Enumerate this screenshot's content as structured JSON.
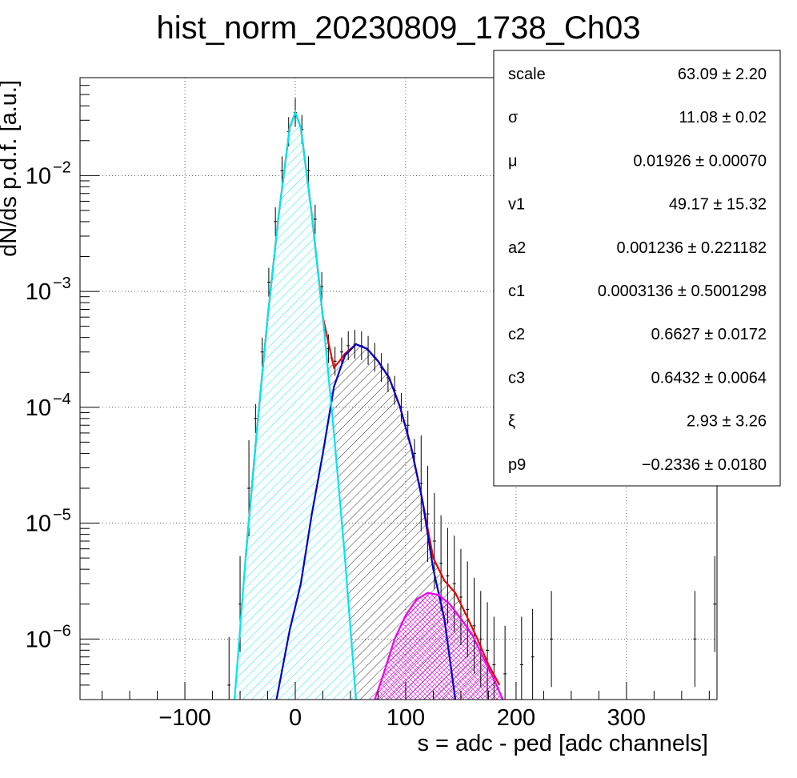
{
  "chart_data": {
    "type": "line",
    "title": "hist_norm_20230809_1738_Ch03",
    "xlabel": "s = adc - ped [adc channels]",
    "ylabel": "dN/ds p.d.f. [a.u.]",
    "xlim": [
      -195,
      382
    ],
    "ylim": [
      3e-07,
      0.07
    ],
    "yscale": "log",
    "grid": true,
    "x_ticks": [
      {
        "value": -100,
        "label": "−100"
      },
      {
        "value": 0,
        "label": "0"
      },
      {
        "value": 100,
        "label": "100"
      },
      {
        "value": 200,
        "label": "200"
      },
      {
        "value": 300,
        "label": "300"
      }
    ],
    "y_ticks": [
      {
        "value": 0.01,
        "label": "10",
        "exp": "−2"
      },
      {
        "value": 0.001,
        "label": "10",
        "exp": "−3"
      },
      {
        "value": 0.0001,
        "label": "10",
        "exp": "−4"
      },
      {
        "value": 1e-05,
        "label": "10",
        "exp": "−5"
      },
      {
        "value": 1e-06,
        "label": "10",
        "exp": "−6"
      }
    ],
    "series": [
      {
        "color": "#00e5ee",
        "x": [
          -55,
          -45,
          -35,
          -25,
          -15,
          -5,
          0,
          5,
          15,
          25,
          35,
          45,
          55
        ],
        "y": [
          3e-07,
          5e-06,
          6e-05,
          0.0006,
          0.0046,
          0.026,
          0.035,
          0.026,
          0.0046,
          0.0006,
          6e-05,
          5e-06,
          3e-07
        ]
      },
      {
        "color": "#0000cc",
        "x": [
          -17,
          -5,
          5,
          15,
          25,
          35,
          45,
          55,
          65,
          75,
          85,
          95,
          105,
          115,
          125,
          135,
          145
        ],
        "y": [
          3e-07,
          1.2e-06,
          3e-06,
          1.2e-05,
          4e-05,
          0.00015,
          0.00028,
          0.00035,
          0.00032,
          0.00025,
          0.00018,
          0.0001,
          4.5e-05,
          1.6e-05,
          4e-06,
          1.5e-06,
          3e-07
        ]
      },
      {
        "color": "#ee00ee",
        "x": [
          72,
          80,
          90,
          100,
          110,
          120,
          130,
          140,
          150,
          160,
          170,
          180,
          188
        ],
        "y": [
          3e-07,
          5e-07,
          1e-06,
          1.6e-06,
          2.2e-06,
          2.5e-06,
          2.4e-06,
          2e-06,
          1.5e-06,
          1.1e-06,
          7e-07,
          4.5e-07,
          3e-07
        ]
      },
      {
        "color": "#ee0000",
        "x": [
          -45,
          -35,
          -25,
          -15,
          -5,
          0,
          5,
          15,
          25,
          35,
          40,
          45,
          55,
          65,
          75,
          85,
          95,
          105,
          115,
          125,
          135,
          145,
          155,
          165,
          175,
          185
        ],
        "y": [
          5e-06,
          6e-05,
          0.0006,
          0.0046,
          0.026,
          0.035,
          0.026,
          0.0046,
          0.0006,
          0.00022,
          0.00025,
          0.00029,
          0.00035,
          0.00032,
          0.00025,
          0.00018,
          0.0001,
          4.5e-05,
          1.6e-05,
          5e-06,
          3.2e-06,
          2.5e-06,
          1.6e-06,
          1e-06,
          6e-07,
          4e-07
        ]
      }
    ],
    "data_points": {
      "x": [
        -60,
        -50,
        -42,
        -36,
        -30,
        -24,
        -18,
        -12,
        -6,
        0,
        6,
        12,
        18,
        24,
        30,
        36,
        42,
        48,
        54,
        60,
        66,
        72,
        78,
        84,
        90,
        96,
        102,
        108,
        114,
        120,
        126,
        132,
        138,
        144,
        150,
        156,
        162,
        168,
        174,
        180,
        190,
        205,
        215,
        232,
        362,
        380
      ],
      "y": [
        4e-07,
        2e-06,
        2e-05,
        8e-05,
        0.0003,
        0.0012,
        0.004,
        0.011,
        0.024,
        0.035,
        0.025,
        0.011,
        0.0042,
        0.0011,
        0.00032,
        0.00025,
        0.0003,
        0.00034,
        0.00035,
        0.00034,
        0.00031,
        0.00027,
        0.00022,
        0.00018,
        0.00014,
        0.0001,
        7e-05,
        4e-05,
        2.2e-05,
        1.2e-05,
        7e-06,
        4.5e-06,
        3.5e-06,
        3e-06,
        2.3e-06,
        1.8e-06,
        1.3e-06,
        1e-06,
        8e-07,
        6e-07,
        5e-07,
        6e-07,
        7e-07,
        1e-06,
        1e-06,
        2e-06
      ]
    },
    "stats": [
      {
        "label": "scale",
        "value": "63.09 ± 2.20"
      },
      {
        "label": "σ",
        "value": "11.08 ± 0.02"
      },
      {
        "label": "μ",
        "value": "0.01926 ± 0.00070"
      },
      {
        "label": "v1",
        "value": "49.17 ± 15.32"
      },
      {
        "label": "a2",
        "value": "0.001236 ± 0.221182"
      },
      {
        "label": "c1",
        "value": "0.0003136 ± 0.5001298"
      },
      {
        "label": "c2",
        "value": "0.6627 ± 0.0172"
      },
      {
        "label": "c3",
        "value": "0.6432 ± 0.0064"
      },
      {
        "label": "ξ",
        "value": "2.93 ± 3.26"
      },
      {
        "label": "p9",
        "value": "−0.2336 ± 0.0180"
      }
    ]
  }
}
